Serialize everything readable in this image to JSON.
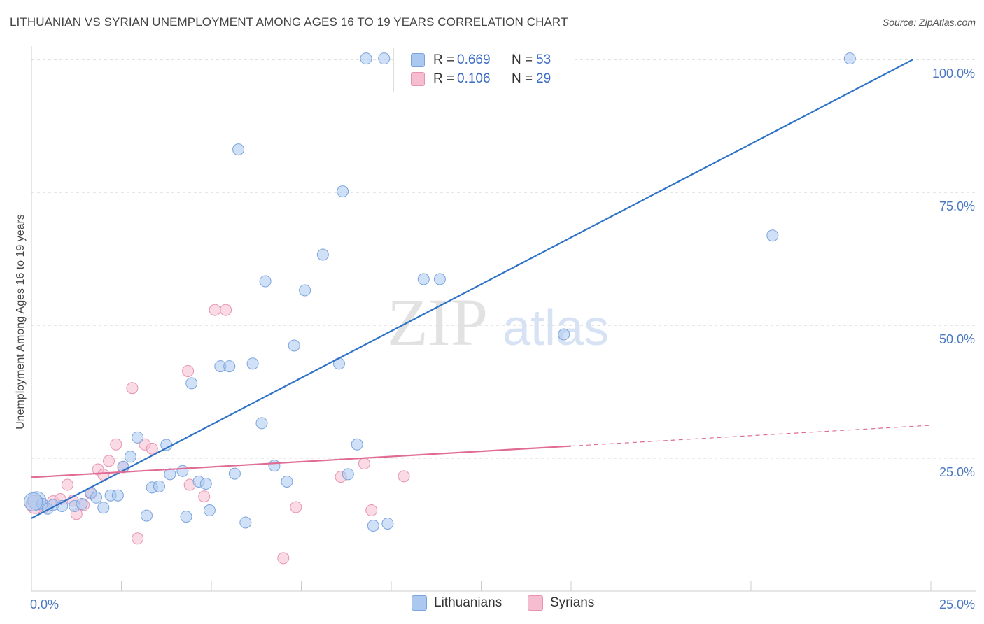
{
  "header": {
    "title": "LITHUANIAN VS SYRIAN UNEMPLOYMENT AMONG AGES 16 TO 19 YEARS CORRELATION CHART",
    "source": "Source: ZipAtlas.com"
  },
  "watermark": {
    "zip": "ZIP",
    "atlas": "atlas"
  },
  "legend_top": [
    {
      "r_label": "R =",
      "r_value": "0.669",
      "n_label": "N =",
      "n_value": "53"
    },
    {
      "r_label": "R =",
      "r_value": "0.106",
      "n_label": "N =",
      "n_value": "29"
    }
  ],
  "legend_bottom": [
    "Lithuanians",
    "Syrians"
  ],
  "colors": {
    "lith_fill": "#aac8f0",
    "lith_stroke": "#7aa4de",
    "lith_line": "#2e72c8",
    "syr_fill": "#f6bcd0",
    "syr_stroke": "#e893b0",
    "syr_line": "#e06b94",
    "grid": "#d8d8d8",
    "axis_text": "#4a78c2"
  },
  "chart_data": {
    "type": "scatter",
    "title": "LITHUANIAN VS SYRIAN UNEMPLOYMENT AMONG AGES 16 TO 19 YEARS CORRELATION CHART",
    "xlabel": "",
    "ylabel": "Unemployment Among Ages 16 to 19 years",
    "xlim": [
      0,
      25
    ],
    "ylim": [
      0,
      102
    ],
    "x_tick_labels": [
      "0.0%",
      "25.0%"
    ],
    "y_ticks": [
      25,
      50,
      75,
      100
    ],
    "y_tick_labels": [
      "25.0%",
      "50.0%",
      "75.0%",
      "100.0%"
    ],
    "grid": true,
    "legend_position": "top-center",
    "series": [
      {
        "name": "Lithuanians",
        "R": 0.669,
        "N": 53,
        "trend": {
          "x": [
            0,
            24.5
          ],
          "y": [
            13.7,
            100
          ]
        },
        "points": [
          [
            0.15,
            17.0
          ],
          [
            0.3,
            16.4
          ],
          [
            0.45,
            15.5
          ],
          [
            0.6,
            16.2
          ],
          [
            0.85,
            16.0
          ],
          [
            1.2,
            16.0
          ],
          [
            1.4,
            16.4
          ],
          [
            1.65,
            18.5
          ],
          [
            1.8,
            17.6
          ],
          [
            2.0,
            15.7
          ],
          [
            2.2,
            18.0
          ],
          [
            2.4,
            18.0
          ],
          [
            2.55,
            23.4
          ],
          [
            2.75,
            25.3
          ],
          [
            2.95,
            28.9
          ],
          [
            3.2,
            14.2
          ],
          [
            3.35,
            19.5
          ],
          [
            3.55,
            19.7
          ],
          [
            3.75,
            27.5
          ],
          [
            3.85,
            22.0
          ],
          [
            4.2,
            22.6
          ],
          [
            4.3,
            14.0
          ],
          [
            4.45,
            39.1
          ],
          [
            4.65,
            20.6
          ],
          [
            4.85,
            20.2
          ],
          [
            4.95,
            15.2
          ],
          [
            5.25,
            42.3
          ],
          [
            5.5,
            42.3
          ],
          [
            5.65,
            22.1
          ],
          [
            5.75,
            83.1
          ],
          [
            5.95,
            12.9
          ],
          [
            6.15,
            42.8
          ],
          [
            6.4,
            31.6
          ],
          [
            6.5,
            58.3
          ],
          [
            6.75,
            23.6
          ],
          [
            7.1,
            20.6
          ],
          [
            7.3,
            46.2
          ],
          [
            7.6,
            56.6
          ],
          [
            8.1,
            63.3
          ],
          [
            8.55,
            42.8
          ],
          [
            8.65,
            75.2
          ],
          [
            8.8,
            22.0
          ],
          [
            9.05,
            27.6
          ],
          [
            9.3,
            100.2
          ],
          [
            9.5,
            12.3
          ],
          [
            9.8,
            100.2
          ],
          [
            9.9,
            12.7
          ],
          [
            10.9,
            58.7
          ],
          [
            11.35,
            58.7
          ],
          [
            14.8,
            48.3
          ],
          [
            20.6,
            66.9
          ],
          [
            22.75,
            100.2
          ],
          [
            0.05,
            16.8
          ]
        ]
      },
      {
        "name": "Syrians",
        "R": 0.106,
        "N": 29,
        "trend": {
          "x": [
            0,
            15
          ],
          "y": [
            21.4,
            27.3
          ]
        },
        "trend_dashed": {
          "x": [
            15,
            25
          ],
          "y": [
            27.3,
            31.2
          ]
        },
        "points": [
          [
            0.1,
            16.3
          ],
          [
            0.35,
            15.8
          ],
          [
            0.6,
            16.9
          ],
          [
            0.8,
            17.3
          ],
          [
            1.0,
            20.0
          ],
          [
            1.15,
            17.0
          ],
          [
            1.25,
            14.5
          ],
          [
            1.45,
            16.2
          ],
          [
            1.65,
            18.3
          ],
          [
            1.85,
            22.9
          ],
          [
            2.0,
            21.9
          ],
          [
            2.15,
            24.5
          ],
          [
            2.35,
            27.6
          ],
          [
            2.55,
            23.3
          ],
          [
            2.8,
            38.2
          ],
          [
            2.95,
            9.9
          ],
          [
            3.15,
            27.6
          ],
          [
            3.35,
            26.8
          ],
          [
            4.35,
            41.4
          ],
          [
            4.4,
            20.0
          ],
          [
            4.8,
            17.8
          ],
          [
            5.1,
            52.9
          ],
          [
            5.4,
            52.9
          ],
          [
            7.0,
            6.2
          ],
          [
            7.35,
            15.8
          ],
          [
            8.6,
            21.5
          ],
          [
            9.25,
            24.0
          ],
          [
            9.45,
            15.2
          ],
          [
            10.35,
            21.6
          ]
        ]
      }
    ]
  }
}
